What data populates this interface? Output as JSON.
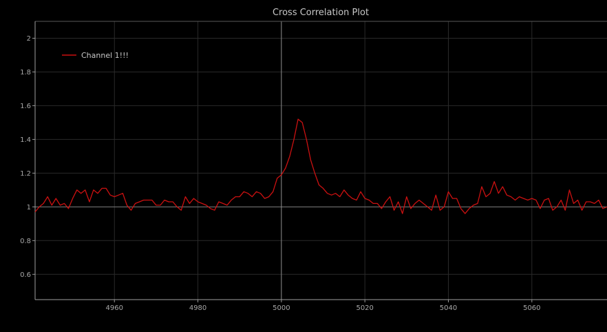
{
  "chart_data": {
    "type": "line",
    "title": "Cross Correlation Plot",
    "xlabel": "",
    "ylabel": "",
    "xlim": [
      4941,
      5078
    ],
    "ylim": [
      0.45,
      2.1
    ],
    "xticks": [
      4960,
      4980,
      5000,
      5020,
      5040,
      5060
    ],
    "yticks": [
      0.6,
      0.8,
      1,
      1.2,
      1.4,
      1.6,
      1.8,
      2
    ],
    "ytick_labels": [
      "0.6",
      "0.8",
      "1",
      "1.2",
      "1.4",
      "1.6",
      "1.8",
      "2"
    ],
    "grid": true,
    "vline_x": 5000,
    "hline_y": 1,
    "legend_position": "top-left",
    "series": [
      {
        "name": "Channel 1!!!",
        "color": "#cc1111",
        "x": [
          4941,
          4942,
          4943,
          4944,
          4945,
          4946,
          4947,
          4948,
          4949,
          4950,
          4951,
          4952,
          4953,
          4954,
          4955,
          4956,
          4957,
          4958,
          4959,
          4960,
          4961,
          4962,
          4963,
          4964,
          4965,
          4966,
          4967,
          4968,
          4969,
          4970,
          4971,
          4972,
          4973,
          4974,
          4975,
          4976,
          4977,
          4978,
          4979,
          4980,
          4981,
          4982,
          4983,
          4984,
          4985,
          4986,
          4987,
          4988,
          4989,
          4990,
          4991,
          4992,
          4993,
          4994,
          4995,
          4996,
          4997,
          4998,
          4999,
          5000,
          5001,
          5002,
          5003,
          5004,
          5005,
          5006,
          5007,
          5008,
          5009,
          5010,
          5011,
          5012,
          5013,
          5014,
          5015,
          5016,
          5017,
          5018,
          5019,
          5020,
          5021,
          5022,
          5023,
          5024,
          5025,
          5026,
          5027,
          5028,
          5029,
          5030,
          5031,
          5032,
          5033,
          5034,
          5035,
          5036,
          5037,
          5038,
          5039,
          5040,
          5041,
          5042,
          5043,
          5044,
          5045,
          5046,
          5047,
          5048,
          5049,
          5050,
          5051,
          5052,
          5053,
          5054,
          5055,
          5056,
          5057,
          5058,
          5059,
          5060,
          5061,
          5062,
          5063,
          5064,
          5065,
          5066,
          5067,
          5068,
          5069,
          5070,
          5071,
          5072,
          5073,
          5074,
          5075,
          5076,
          5077,
          5078
        ],
        "values": [
          0.97,
          1.0,
          1.02,
          1.06,
          1.01,
          1.05,
          1.01,
          1.02,
          0.99,
          1.05,
          1.1,
          1.08,
          1.1,
          1.03,
          1.1,
          1.08,
          1.11,
          1.11,
          1.07,
          1.06,
          1.07,
          1.08,
          1.01,
          0.98,
          1.02,
          1.03,
          1.04,
          1.04,
          1.04,
          1.01,
          1.01,
          1.04,
          1.03,
          1.03,
          1.0,
          0.98,
          1.06,
          1.02,
          1.05,
          1.03,
          1.02,
          1.01,
          0.99,
          0.98,
          1.03,
          1.02,
          1.01,
          1.04,
          1.06,
          1.06,
          1.09,
          1.08,
          1.06,
          1.09,
          1.08,
          1.05,
          1.06,
          1.09,
          1.17,
          1.19,
          1.23,
          1.3,
          1.4,
          1.52,
          1.5,
          1.4,
          1.28,
          1.2,
          1.13,
          1.11,
          1.08,
          1.07,
          1.08,
          1.06,
          1.1,
          1.07,
          1.05,
          1.04,
          1.09,
          1.05,
          1.04,
          1.02,
          1.02,
          0.99,
          1.03,
          1.06,
          0.98,
          1.03,
          0.96,
          1.06,
          0.99,
          1.02,
          1.04,
          1.02,
          1.0,
          0.98,
          1.07,
          0.98,
          1.0,
          1.09,
          1.05,
          1.05,
          0.99,
          0.96,
          0.99,
          1.01,
          1.02,
          1.12,
          1.06,
          1.08,
          1.15,
          1.08,
          1.12,
          1.07,
          1.06,
          1.04,
          1.06,
          1.05,
          1.04,
          1.05,
          1.04,
          0.99,
          1.04,
          1.05,
          0.98,
          1.0,
          1.04,
          0.98,
          1.1,
          1.02,
          1.04,
          0.98,
          1.03,
          1.03,
          1.02,
          1.04,
          0.99,
          1.0
        ]
      }
    ]
  }
}
